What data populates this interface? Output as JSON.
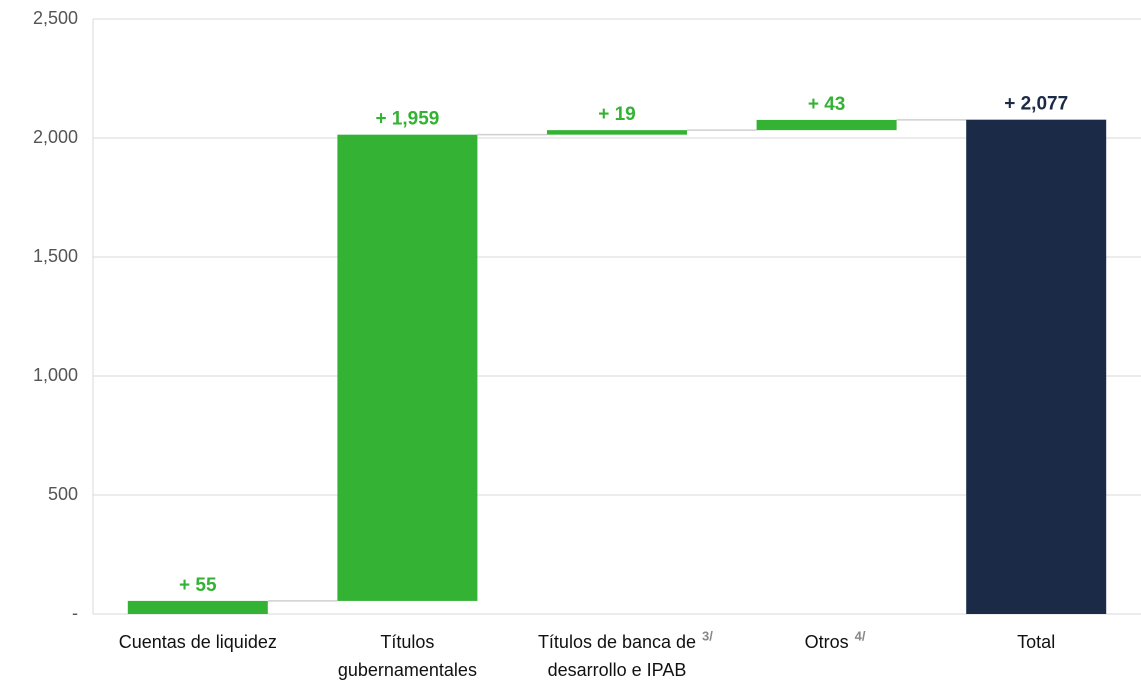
{
  "chart_data": {
    "type": "waterfall",
    "categories": [
      [
        "Cuentas de liquidez"
      ],
      [
        "Títulos",
        "gubernamentales"
      ],
      [
        "Títulos de banca de",
        "desarrollo e IPAB"
      ],
      [
        "Otros"
      ],
      [
        "Total"
      ]
    ],
    "footnotes": [
      null,
      null,
      "3/",
      "4/",
      null
    ],
    "measure": [
      "relative",
      "relative",
      "relative",
      "relative",
      "total"
    ],
    "values": [
      55,
      1959,
      19,
      43,
      2077
    ],
    "value_labels": [
      "+ 55",
      "+ 1,959",
      "+ 19",
      "+ 43",
      "+ 2,077"
    ],
    "colors": {
      "relative": "#34b233",
      "total": "#1b2a47"
    },
    "ylim": [
      0,
      2500
    ],
    "yticks": [
      {
        "value": 0,
        "label": "-"
      },
      500,
      {
        "value": 1000,
        "label": "1,000"
      },
      {
        "value": 1500,
        "label": "1,500"
      },
      {
        "value": 2000,
        "label": "2,000"
      },
      {
        "value": 2500,
        "label": "2,500"
      }
    ],
    "grid": true
  }
}
